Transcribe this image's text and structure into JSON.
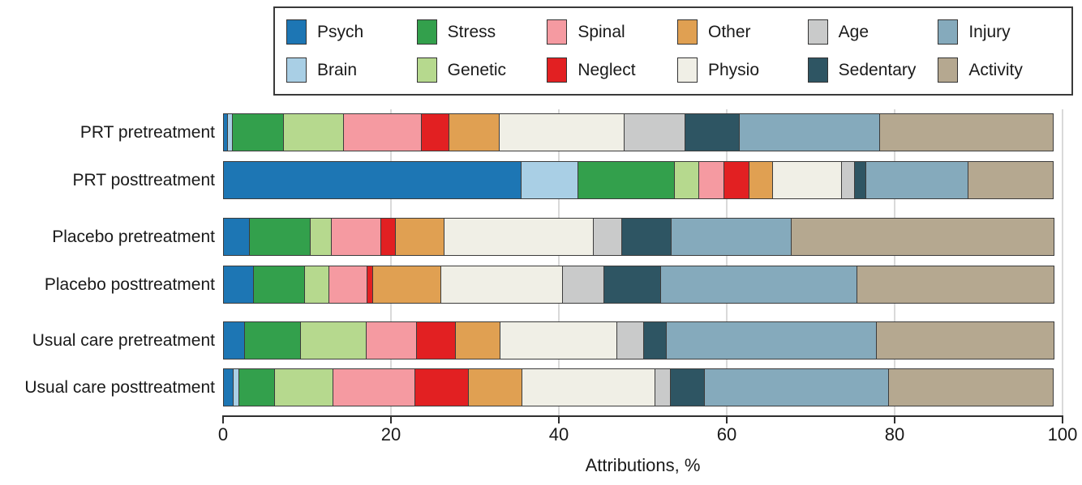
{
  "figure": {
    "x_axis_label": "Attributions, %"
  },
  "colors": {
    "Psych": "#1d76b4",
    "Brain": "#a9cfe5",
    "Stress": "#33a04c",
    "Genetic": "#b6d98e",
    "Spinal": "#f59aa1",
    "Neglect": "#e22022",
    "Other": "#e0a052",
    "Physio": "#f0efe6",
    "Age": "#c9caca",
    "Sedentary": "#2e5563",
    "Injury": "#85aabc",
    "Activity": "#b5a890"
  },
  "legend": {
    "rows": [
      [
        "Psych",
        "Stress",
        "Spinal",
        "Other",
        "Age",
        "Injury"
      ],
      [
        "Brain",
        "Genetic",
        "Neglect",
        "Physio",
        "Sedentary",
        "Activity"
      ]
    ]
  },
  "chart_data": {
    "type": "bar",
    "orientation": "horizontal",
    "stacked": true,
    "grid": "vertical-light",
    "xlabel": "Attributions, %",
    "xlim": [
      0,
      100
    ],
    "x_ticks": [
      0,
      20,
      40,
      60,
      80,
      100
    ],
    "categories": [
      "PRT pretreatment",
      "PRT posttreatment",
      "Placebo pretreatment",
      "Placebo posttreatment",
      "Usual care pretreatment",
      "Usual care posttreatment"
    ],
    "series": [
      {
        "name": "Psych",
        "values": [
          0.6,
          35.6,
          3.2,
          3.7,
          2.6,
          1.3
        ]
      },
      {
        "name": "Brain",
        "values": [
          0.7,
          6.8,
          0,
          0,
          0,
          0.7
        ]
      },
      {
        "name": "Stress",
        "values": [
          6.1,
          11.6,
          7.3,
          6.2,
          6.8,
          4.4
        ]
      },
      {
        "name": "Genetic",
        "values": [
          7.3,
          3.0,
          2.6,
          3.0,
          7.9,
          7.0
        ]
      },
      {
        "name": "Spinal",
        "values": [
          9.4,
          3.1,
          6.0,
          4.6,
          6.1,
          9.9
        ]
      },
      {
        "name": "Neglect",
        "values": [
          3.3,
          3.1,
          1.9,
          0.8,
          4.7,
          6.5
        ]
      },
      {
        "name": "Other",
        "values": [
          6.1,
          2.9,
          5.9,
          8.2,
          5.4,
          6.4
        ]
      },
      {
        "name": "Physio",
        "values": [
          15.0,
          8.3,
          17.8,
          14.6,
          14.0,
          16.0
        ]
      },
      {
        "name": "Age",
        "values": [
          7.4,
          1.6,
          3.5,
          5.0,
          3.3,
          1.9
        ]
      },
      {
        "name": "Sedentary",
        "values": [
          6.5,
          1.5,
          6.0,
          6.9,
          2.8,
          4.2
        ]
      },
      {
        "name": "Injury",
        "values": [
          16.8,
          12.3,
          14.4,
          23.4,
          25.2,
          22.0
        ]
      },
      {
        "name": "Activity",
        "values": [
          20.8,
          10.2,
          31.4,
          23.6,
          21.2,
          19.7
        ]
      }
    ]
  }
}
